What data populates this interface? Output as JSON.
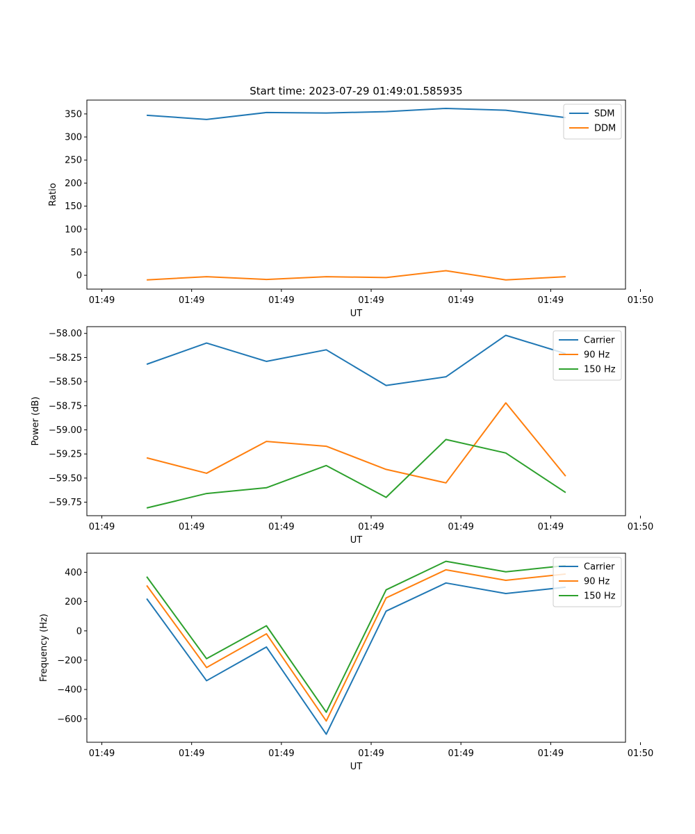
{
  "figure_title": "Start time: 2023-07-29 01:49:01.585935",
  "colors": {
    "blue": "#1f77b4",
    "orange": "#ff7f0e",
    "green": "#2ca02c"
  },
  "chart_data": [
    {
      "type": "line",
      "title": "Start time: 2023-07-29 01:49:01.585935",
      "xlabel": "UT",
      "ylabel": "Ratio",
      "x": [
        1,
        2,
        3,
        4,
        5,
        6,
        7,
        8
      ],
      "xlim": [
        0,
        9
      ],
      "x_ticks": [
        0.25,
        1.75,
        3.25,
        4.75,
        6.25,
        7.75,
        9.25
      ],
      "x_tick_labels": [
        "01:49",
        "01:49",
        "01:49",
        "01:49",
        "01:49",
        "01:49",
        "01:50"
      ],
      "ylim": [
        -30,
        380
      ],
      "y_ticks": [
        0,
        50,
        100,
        150,
        200,
        250,
        300,
        350
      ],
      "y_tick_labels": [
        "0",
        "50",
        "100",
        "150",
        "200",
        "250",
        "300",
        "350"
      ],
      "legend_position": "top-right",
      "series": [
        {
          "name": "SDM",
          "color": "#1f77b4",
          "values": [
            347,
            338,
            353,
            352,
            355,
            362,
            358,
            342
          ]
        },
        {
          "name": "DDM",
          "color": "#ff7f0e",
          "values": [
            -10,
            -3,
            -9,
            -3,
            -5,
            10,
            -10,
            -3
          ]
        }
      ]
    },
    {
      "type": "line",
      "title": "",
      "xlabel": "UT",
      "ylabel": "Power (dB)",
      "x": [
        1,
        2,
        3,
        4,
        5,
        6,
        7,
        8
      ],
      "xlim": [
        0,
        9
      ],
      "x_ticks": [
        0.25,
        1.75,
        3.25,
        4.75,
        6.25,
        7.75,
        9.25
      ],
      "x_tick_labels": [
        "01:49",
        "01:49",
        "01:49",
        "01:49",
        "01:49",
        "01:49",
        "01:50"
      ],
      "ylim": [
        -59.89,
        -57.93
      ],
      "y_ticks": [
        -59.75,
        -59.5,
        -59.25,
        -59.0,
        -58.75,
        -58.5,
        -58.25,
        -58.0
      ],
      "y_tick_labels": [
        "−59.75",
        "−59.50",
        "−59.25",
        "−59.00",
        "−58.75",
        "−58.50",
        "−58.25",
        "−58.00"
      ],
      "legend_position": "top-right",
      "series": [
        {
          "name": "Carrier",
          "color": "#1f77b4",
          "values": [
            -58.32,
            -58.1,
            -58.29,
            -58.17,
            -58.54,
            -58.45,
            -58.02,
            -58.21
          ]
        },
        {
          "name": "90 Hz",
          "color": "#ff7f0e",
          "values": [
            -59.29,
            -59.45,
            -59.12,
            -59.17,
            -59.41,
            -59.55,
            -58.72,
            -59.48
          ]
        },
        {
          "name": "150 Hz",
          "color": "#2ca02c",
          "values": [
            -59.81,
            -59.66,
            -59.6,
            -59.37,
            -59.7,
            -59.1,
            -59.24,
            -59.65
          ]
        }
      ]
    },
    {
      "type": "line",
      "title": "",
      "xlabel": "UT",
      "ylabel": "Frequency (Hz)",
      "x": [
        1,
        2,
        3,
        4,
        5,
        6,
        7,
        8
      ],
      "xlim": [
        0,
        9
      ],
      "x_ticks": [
        0.25,
        1.75,
        3.25,
        4.75,
        6.25,
        7.75,
        9.25
      ],
      "x_tick_labels": [
        "01:49",
        "01:49",
        "01:49",
        "01:49",
        "01:49",
        "01:49",
        "01:50"
      ],
      "ylim": [
        -760,
        530
      ],
      "y_ticks": [
        -600,
        -400,
        -200,
        0,
        200,
        400
      ],
      "y_tick_labels": [
        "−600",
        "−400",
        "−200",
        "0",
        "200",
        "400"
      ],
      "legend_position": "top-right",
      "series": [
        {
          "name": "Carrier",
          "color": "#1f77b4",
          "values": [
            220,
            -340,
            -110,
            -705,
            135,
            327,
            255,
            298
          ]
        },
        {
          "name": "90 Hz",
          "color": "#ff7f0e",
          "values": [
            310,
            -250,
            -20,
            -615,
            225,
            417,
            345,
            388
          ]
        },
        {
          "name": "150 Hz",
          "color": "#2ca02c",
          "values": [
            370,
            -190,
            35,
            -555,
            280,
            475,
            403,
            446
          ]
        }
      ]
    }
  ]
}
